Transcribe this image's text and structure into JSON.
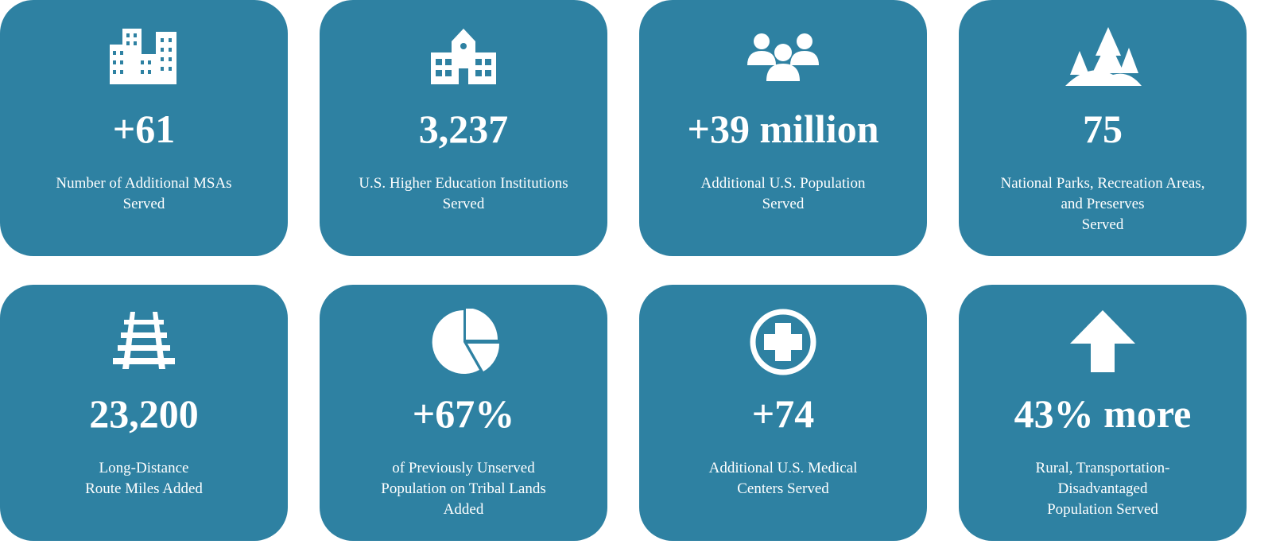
{
  "cards": [
    {
      "value": "+61",
      "label": [
        "Number of Additional MSAs",
        "Served"
      ]
    },
    {
      "value": "3,237",
      "label": [
        "U.S. Higher Education Institutions",
        "Served"
      ]
    },
    {
      "value": "+39 million",
      "label": [
        "Additional U.S. Population",
        "Served"
      ]
    },
    {
      "value": "75",
      "label": [
        "National Parks, Recreation Areas,",
        "and Preserves",
        "Served"
      ]
    },
    {
      "value": "23,200",
      "label": [
        "Long-Distance",
        "Route Miles Added"
      ]
    },
    {
      "value": "+67%",
      "label": [
        "of Previously Unserved",
        "Population on Tribal Lands",
        "Added"
      ]
    },
    {
      "value": "+74",
      "label": [
        "Additional U.S. Medical",
        "Centers Served"
      ]
    },
    {
      "value": "43% more",
      "label": [
        "Rural, Transportation-",
        "Disadvantaged",
        "Population Served"
      ]
    }
  ]
}
